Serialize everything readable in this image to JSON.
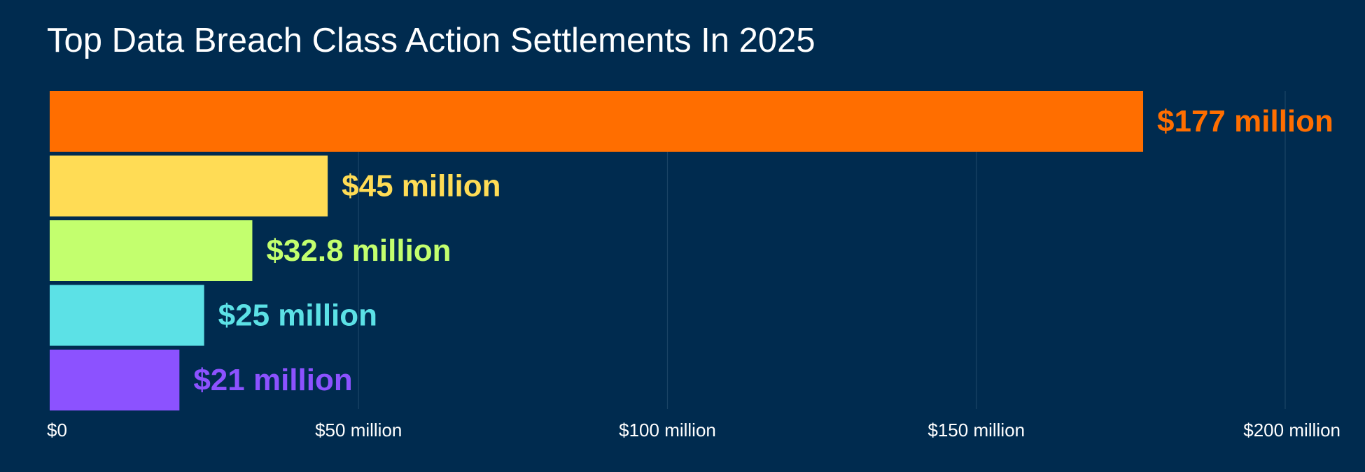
{
  "chart_data": {
    "type": "bar",
    "orientation": "horizontal",
    "title": "Top Data Breach Class Action Settlements In 2025",
    "xlim": [
      0,
      200
    ],
    "x_unit": "million USD",
    "x_ticks": [
      {
        "value": 0,
        "label": "$0"
      },
      {
        "value": 50,
        "label": "$50 million"
      },
      {
        "value": 100,
        "label": "$100 million"
      },
      {
        "value": 150,
        "label": "$150 million"
      },
      {
        "value": 200,
        "label": "$200 million"
      }
    ],
    "grid": true,
    "bars": [
      {
        "value": 177,
        "label": "$177 million",
        "color": "#ff6e00"
      },
      {
        "value": 45,
        "label": "$45 million",
        "color": "#ffdc55"
      },
      {
        "value": 32.8,
        "label": "$32.8 million",
        "color": "#c3ff6e"
      },
      {
        "value": 25,
        "label": "$25 million",
        "color": "#5ce1e6"
      },
      {
        "value": 21,
        "label": "$21 million",
        "color": "#8c52ff"
      }
    ]
  },
  "colors": {
    "background": "#002b4f",
    "grid": "#1b4466",
    "text": "#ffffff"
  }
}
